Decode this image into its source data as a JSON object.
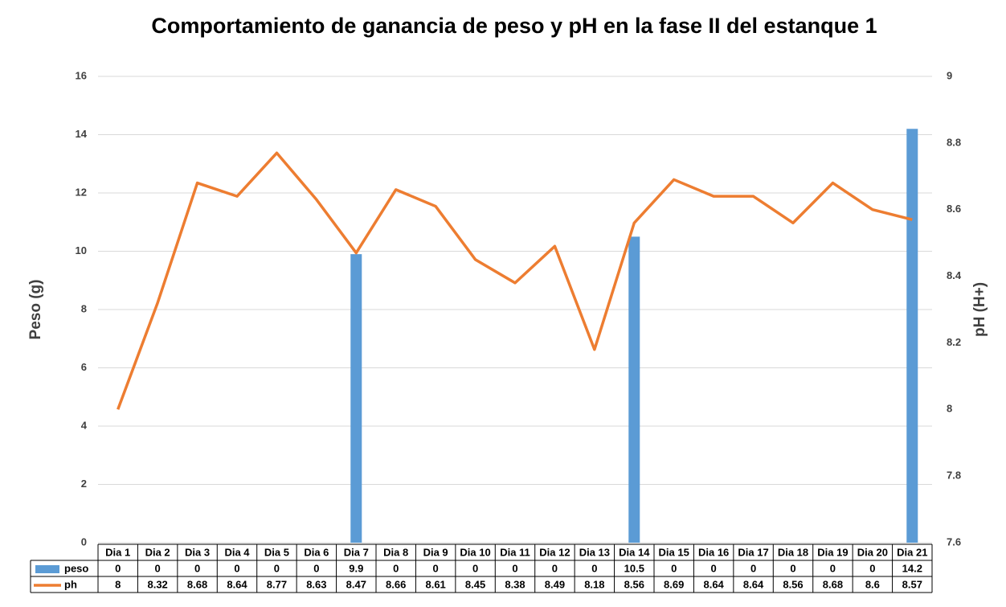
{
  "chart_data": {
    "type": "bar",
    "title": "Comportamiento de ganancia de peso y pH en la fase II del estanque 1",
    "y_label": "Peso (g)",
    "y2_label": "pH (H+)",
    "categories": [
      "Dia 1",
      "Dia 2",
      "Dia 3",
      "Dia 4",
      "Dia 5",
      "Dia 6",
      "Dia 7",
      "Dia 8",
      "Dia 9",
      "Dia 10",
      "Dia 11",
      "Dia 12",
      "Dia 13",
      "Dia 14",
      "Dia 15",
      "Dia 16",
      "Dia 17",
      "Dia 18",
      "Dia 19",
      "Dia 20",
      "Dia 21"
    ],
    "series": [
      {
        "name": "peso",
        "type": "bar",
        "color": "#5b9bd5",
        "values": [
          0,
          0,
          0,
          0,
          0,
          0,
          9.9,
          0,
          0,
          0,
          0,
          0,
          0,
          10.5,
          0,
          0,
          0,
          0,
          0,
          0,
          14.2
        ]
      },
      {
        "name": "ph",
        "type": "line",
        "axis": "y2",
        "color": "#ed7d31",
        "values": [
          8,
          8.32,
          8.68,
          8.64,
          8.77,
          8.63,
          8.47,
          8.66,
          8.61,
          8.45,
          8.38,
          8.49,
          8.18,
          8.56,
          8.69,
          8.64,
          8.64,
          8.56,
          8.68,
          8.6,
          8.57
        ]
      }
    ],
    "ylim": [
      0,
      16
    ],
    "yticks": [
      0,
      2,
      4,
      6,
      8,
      10,
      12,
      14,
      16
    ],
    "y2lim": [
      7.6,
      9
    ],
    "y2ticks": [
      7.6,
      7.8,
      8,
      8.2,
      8.4,
      8.6,
      8.8,
      9
    ],
    "grid": true,
    "data_table": true
  }
}
